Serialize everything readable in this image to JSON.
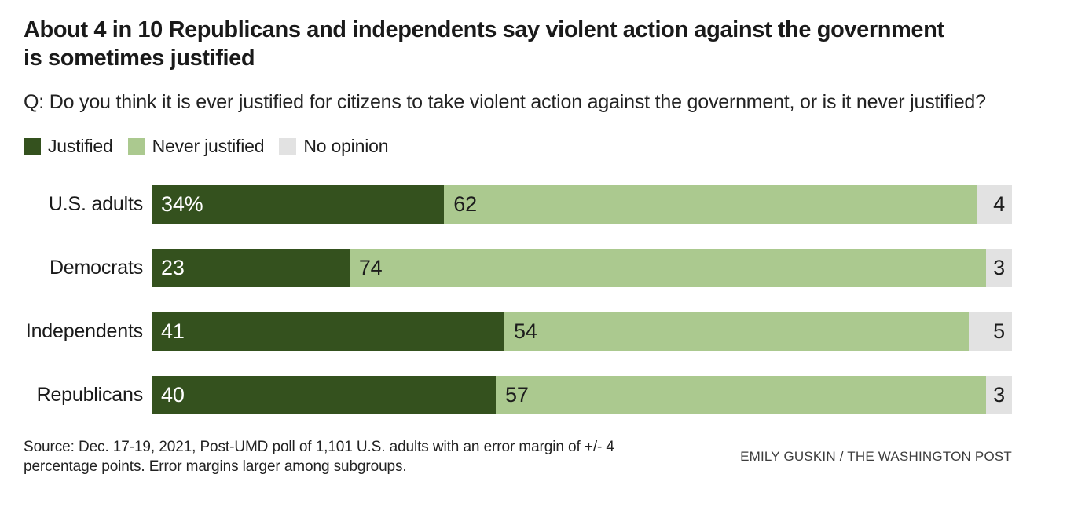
{
  "title": "About 4 in 10 Republicans and independents say violent action against the government is sometimes justified",
  "question": "Q: Do you think it is ever justified for citizens to take violent action against the government, or is it never justified?",
  "legend": [
    {
      "label": "Justified",
      "color": "#34511e"
    },
    {
      "label": "Never justified",
      "color": "#abc98f"
    },
    {
      "label": "No opinion",
      "color": "#e2e2e2"
    }
  ],
  "chart_data": {
    "type": "bar",
    "orientation": "horizontal",
    "stacked": true,
    "unit": "percent",
    "xlim": [
      0,
      100
    ],
    "legend_position": "top",
    "grid": false,
    "categories": [
      "U.S. adults",
      "Democrats",
      "Independents",
      "Republicans"
    ],
    "series": [
      {
        "name": "Justified",
        "color": "#34511e",
        "text_color": "#ffffff",
        "values": [
          34,
          23,
          41,
          40
        ]
      },
      {
        "name": "Never justified",
        "color": "#abc98f",
        "text_color": "#1d1d1d",
        "values": [
          62,
          74,
          54,
          57
        ]
      },
      {
        "name": "No opinion",
        "color": "#e2e2e2",
        "text_color": "#1d1d1d",
        "values": [
          4,
          3,
          5,
          3
        ]
      }
    ],
    "value_labels": [
      [
        "34%",
        "62",
        "4"
      ],
      [
        "23",
        "74",
        "3"
      ],
      [
        "41",
        "54",
        "5"
      ],
      [
        "40",
        "57",
        "3"
      ]
    ]
  },
  "footer": {
    "source": "Source: Dec. 17-19, 2021, Post-UMD poll of 1,101 U.S. adults with an error margin of +/- 4 percentage points. Error margins larger among subgroups.",
    "credit": "EMILY GUSKIN / THE WASHINGTON POST"
  }
}
